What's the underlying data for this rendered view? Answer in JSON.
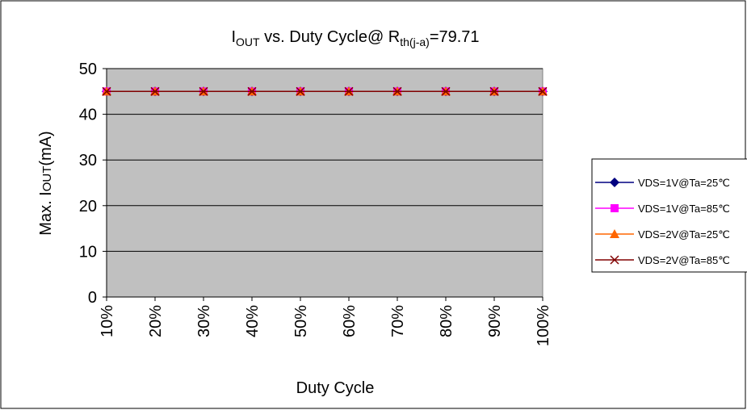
{
  "chart_data": {
    "type": "line",
    "title": [
      {
        "text": "I"
      },
      {
        "text": "OUT",
        "sub": true
      },
      {
        "text": " vs. Duty Cycle@ R"
      },
      {
        "text": "th(j-a)",
        "sub": true
      },
      {
        "text": "=79.71"
      }
    ],
    "x_label": "Duty Cycle",
    "y_label": [
      {
        "text": "Max. I"
      },
      {
        "text": "OUT",
        "small": true
      },
      {
        "text": "(mA)"
      }
    ],
    "categories": [
      "10%",
      "20%",
      "30%",
      "40%",
      "50%",
      "60%",
      "70%",
      "80%",
      "90%",
      "100%"
    ],
    "series": [
      {
        "name": "VDS=1V@Ta=25℃",
        "color": "#000080",
        "marker": "diamond",
        "values": [
          45,
          45,
          45,
          45,
          45,
          45,
          45,
          45,
          45,
          45
        ]
      },
      {
        "name": "VDS=1V@Ta=85℃",
        "color": "#ff00ff",
        "marker": "square",
        "values": [
          45,
          45,
          45,
          45,
          45,
          45,
          45,
          45,
          45,
          45
        ]
      },
      {
        "name": "VDS=2V@Ta=25℃",
        "color": "#ff6600",
        "marker": "triangle",
        "values": [
          45,
          45,
          45,
          45,
          45,
          45,
          45,
          45,
          45,
          45
        ]
      },
      {
        "name": "VDS=2V@Ta=85℃",
        "color": "#800000",
        "marker": "x",
        "values": [
          45,
          45,
          45,
          45,
          45,
          45,
          45,
          45,
          45,
          45
        ]
      }
    ],
    "ylim": [
      0,
      50
    ],
    "yticks": [
      0,
      10,
      20,
      30,
      40,
      50
    ],
    "grid": true,
    "plot_background": "#c0c0c0",
    "legend": "right"
  }
}
